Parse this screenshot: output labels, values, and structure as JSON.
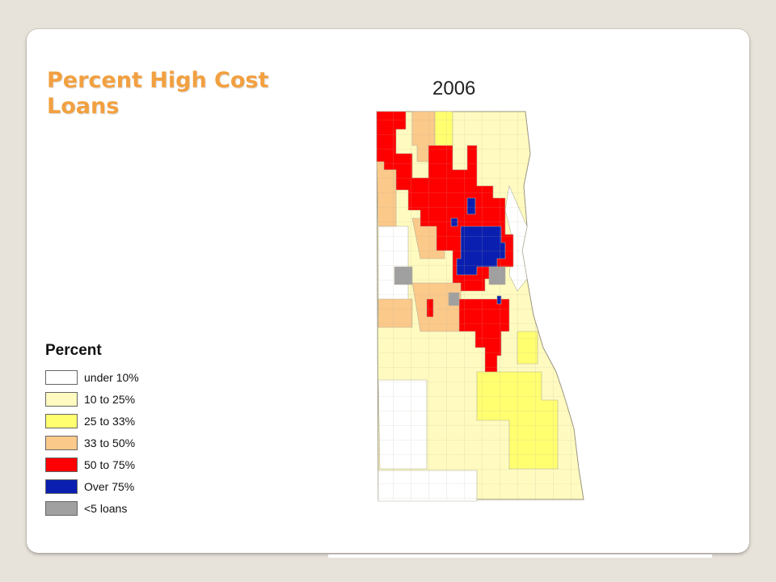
{
  "slide": {
    "title": "Percent High Cost Loans",
    "year": "2006"
  },
  "legend": {
    "title": "Percent",
    "items": [
      {
        "label": "under 10%",
        "color": "#ffffff"
      },
      {
        "label": "10 to 25%",
        "color": "#fffbc0"
      },
      {
        "label": "25 to 33%",
        "color": "#ffff70"
      },
      {
        "label": "33 to 50%",
        "color": "#fbc98a"
      },
      {
        "label": "50 to 75%",
        "color": "#ff0000"
      },
      {
        "label": "Over 75%",
        "color": "#0a1fb0"
      },
      {
        "label": "<5 loans",
        "color": "#a0a0a0"
      }
    ]
  },
  "colors": {
    "title": "#f2a040",
    "tract_border": "#b5b09a",
    "background": "#e7e2da"
  }
}
